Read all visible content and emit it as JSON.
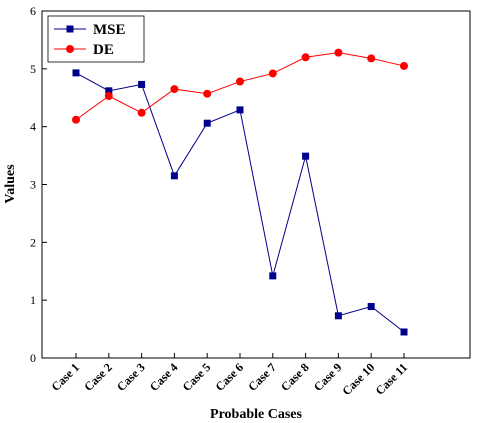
{
  "chart_data": {
    "type": "line",
    "xlabel": "Probable Cases",
    "ylabel": "Values",
    "ylim": [
      0,
      6
    ],
    "yticks": [
      0,
      1,
      2,
      3,
      4,
      5,
      6
    ],
    "categories": [
      "Case 1",
      "Case 2",
      "Case 3",
      "Case 4",
      "Case 5",
      "Case 6",
      "Case 7",
      "Case 8",
      "Case 9",
      "Case 10",
      "Case 11"
    ],
    "legend_position": "top-left",
    "grid": false,
    "series": [
      {
        "name": "MSE",
        "color": "#00008B",
        "marker": "square",
        "values": [
          4.93,
          4.62,
          4.73,
          3.15,
          4.06,
          4.29,
          1.42,
          3.49,
          0.73,
          0.89,
          0.45
        ]
      },
      {
        "name": "DE",
        "color": "#FF0000",
        "marker": "circle",
        "values": [
          4.12,
          4.53,
          4.24,
          4.65,
          4.57,
          4.78,
          4.92,
          5.2,
          5.28,
          5.18,
          5.05
        ]
      }
    ]
  }
}
